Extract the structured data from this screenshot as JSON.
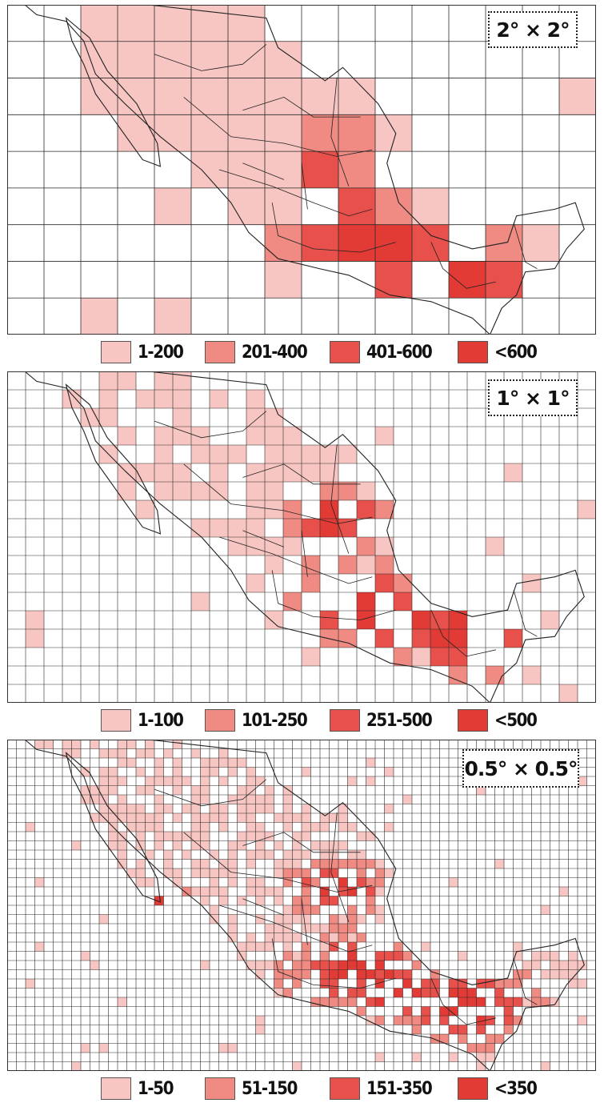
{
  "colors": {
    "bin1": "#f7c6c3",
    "bin2": "#ef8b82",
    "bin3": "#e8514b",
    "bin4": "#e23b35",
    "grid": "#2a2a2a",
    "outline": "#222222"
  },
  "maps": [
    {
      "resolution_label": "2° × 2°",
      "legend": [
        "1-200",
        "201-400",
        "401-600",
        "<600"
      ]
    },
    {
      "resolution_label": "1° × 1°",
      "legend": [
        "1-100",
        "101-250",
        "251-500",
        "<500"
      ]
    },
    {
      "resolution_label": "0.5° × 0.5°",
      "legend": [
        "1-50",
        "51-150",
        "151-350",
        "<350"
      ]
    }
  ]
}
